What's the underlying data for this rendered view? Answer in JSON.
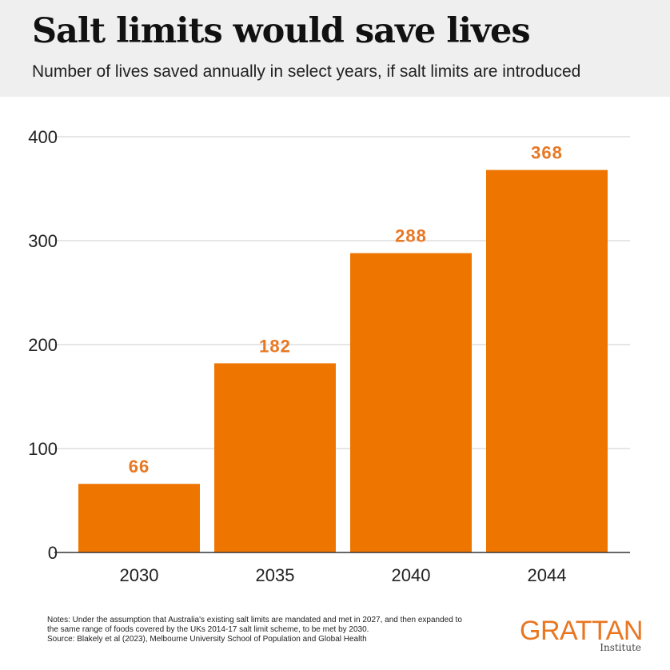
{
  "header": {
    "title": "Salt limits would save lives",
    "subtitle": "Number of lives saved annually in select years, if salt limits are introduced"
  },
  "chart_data": {
    "type": "bar",
    "title": "Salt limits would save lives",
    "subtitle": "Number of lives saved annually in select years, if salt limits are introduced",
    "xlabel": "",
    "ylabel": "",
    "categories": [
      "2030",
      "2035",
      "2040",
      "2044"
    ],
    "values": [
      66,
      182,
      288,
      368
    ],
    "data_labels": [
      "66",
      "182",
      "288",
      "368"
    ],
    "y_ticks": [
      "0",
      "100",
      "200",
      "300",
      "400"
    ],
    "ylim": [
      0,
      400
    ],
    "grid": true,
    "legend": "none",
    "bar_color": "#ee7600",
    "label_color": "#e87722",
    "grid_color": "#cccccc"
  },
  "footer": {
    "notes_line1": "Notes: Under the assumption that Australia's existing salt limits are mandated and met in 2027, and then expanded to",
    "notes_line2": "the same range of foods covered by the UKs 2014-17 salt limit scheme, to be met by 2030.",
    "source": "Source: Blakely et al (2023),  Melbourne University School of  Population and Global Health"
  },
  "logo": {
    "name": "GRATTAN",
    "sub": "Institute",
    "color": "#e87722"
  }
}
